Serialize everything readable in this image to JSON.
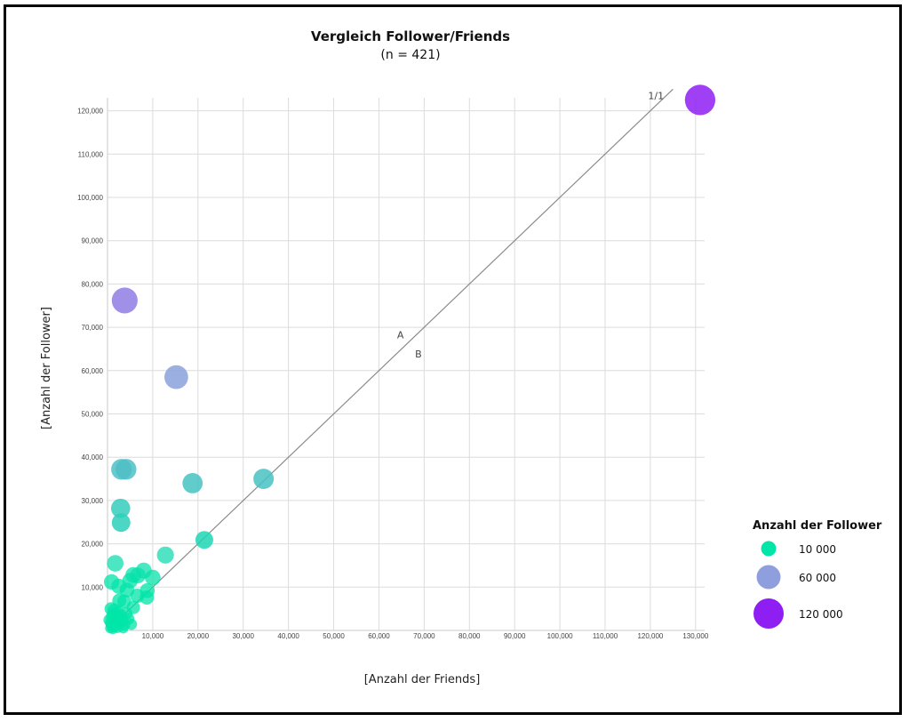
{
  "chart_data": {
    "type": "scatter",
    "title": "Vergleich Follower/Friends",
    "subtitle": "(n = 421)",
    "xlabel": "[Anzahl der Friends]",
    "ylabel": "[Anzahl der Follower]",
    "xlim": [
      0,
      132000
    ],
    "ylim": [
      0,
      123000
    ],
    "x_ticks": [
      10000,
      20000,
      30000,
      40000,
      50000,
      60000,
      70000,
      80000,
      90000,
      100000,
      110000,
      120000,
      130000
    ],
    "y_ticks": [
      10000,
      20000,
      30000,
      40000,
      50000,
      60000,
      70000,
      80000,
      90000,
      100000,
      110000,
      120000
    ],
    "x_tick_labels": [
      "10,000",
      "20,000",
      "30,000",
      "40,000",
      "50,000",
      "60,000",
      "70,000",
      "80,000",
      "90,000",
      "100,000",
      "110,000",
      "120,000",
      "130,000"
    ],
    "y_tick_labels": [
      "10,000",
      "20,000",
      "30,000",
      "40,000",
      "50,000",
      "60,000",
      "70,000",
      "80,000",
      "90,000",
      "100,000",
      "110,000",
      "120,000"
    ],
    "grid": true,
    "reference_line": {
      "label": "1/1",
      "from": [
        0,
        0
      ],
      "to": [
        125000,
        125000
      ]
    },
    "annotations": [
      {
        "text": "A",
        "x": 64000,
        "y": 67500
      },
      {
        "text": "B",
        "x": 68000,
        "y": 63000
      }
    ],
    "legend": {
      "title": "Anzahl der Follower",
      "position": "right",
      "entries": [
        {
          "label": "10 000",
          "value": 10000
        },
        {
          "label": "60 000",
          "value": 60000
        },
        {
          "label": "120 000",
          "value": 120000
        }
      ]
    },
    "color_scale": {
      "low": "#00e5a8",
      "mid": "#8f9fde",
      "high": "#8e1ef2"
    },
    "points": [
      {
        "x": 131000,
        "y": 122500
      },
      {
        "x": 3800,
        "y": 76200
      },
      {
        "x": 15200,
        "y": 58500
      },
      {
        "x": 34500,
        "y": 35000
      },
      {
        "x": 18800,
        "y": 34000
      },
      {
        "x": 3100,
        "y": 37200
      },
      {
        "x": 4100,
        "y": 37200
      },
      {
        "x": 2900,
        "y": 28200
      },
      {
        "x": 3000,
        "y": 24900
      },
      {
        "x": 21400,
        "y": 20900
      },
      {
        "x": 12800,
        "y": 17400
      },
      {
        "x": 1700,
        "y": 15500
      },
      {
        "x": 10000,
        "y": 12200
      },
      {
        "x": 5700,
        "y": 12800
      },
      {
        "x": 6700,
        "y": 12700
      },
      {
        "x": 8000,
        "y": 13800
      },
      {
        "x": 5000,
        "y": 11500
      },
      {
        "x": 2500,
        "y": 10200
      },
      {
        "x": 900,
        "y": 11200
      },
      {
        "x": 4300,
        "y": 9300
      },
      {
        "x": 6600,
        "y": 8000
      },
      {
        "x": 8800,
        "y": 9200
      },
      {
        "x": 8700,
        "y": 7600
      },
      {
        "x": 2600,
        "y": 6900
      },
      {
        "x": 3700,
        "y": 6700
      },
      {
        "x": 5700,
        "y": 5300
      },
      {
        "x": 800,
        "y": 5000
      },
      {
        "x": 1500,
        "y": 4700
      },
      {
        "x": 2300,
        "y": 4100
      },
      {
        "x": 3000,
        "y": 3400
      },
      {
        "x": 4100,
        "y": 3900
      },
      {
        "x": 4600,
        "y": 2700
      },
      {
        "x": 1000,
        "y": 3200
      },
      {
        "x": 1800,
        "y": 2200
      },
      {
        "x": 2700,
        "y": 1500
      },
      {
        "x": 5300,
        "y": 1400
      },
      {
        "x": 800,
        "y": 1200
      },
      {
        "x": 1500,
        "y": 800
      },
      {
        "x": 2200,
        "y": 600
      },
      {
        "x": 3500,
        "y": 500
      },
      {
        "x": 600,
        "y": 500
      },
      {
        "x": 1200,
        "y": 300
      },
      {
        "x": 400,
        "y": 2400
      },
      {
        "x": 2000,
        "y": 3000
      },
      {
        "x": 3300,
        "y": 2300
      },
      {
        "x": 700,
        "y": 1800
      },
      {
        "x": 3800,
        "y": 1200
      },
      {
        "x": 1300,
        "y": 3800
      }
    ]
  }
}
